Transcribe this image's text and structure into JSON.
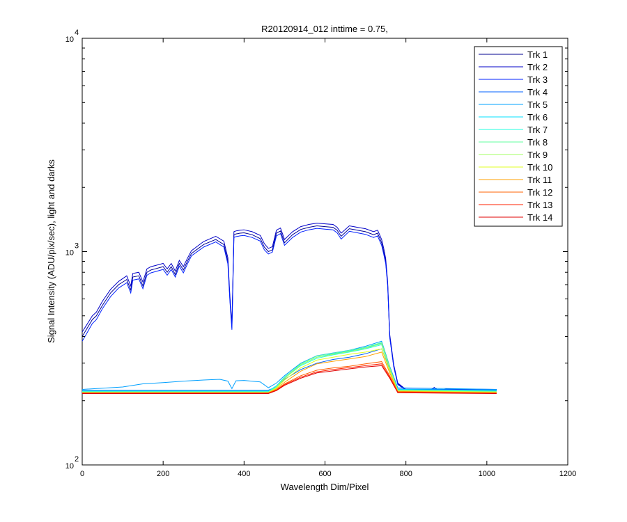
{
  "chart_data": {
    "type": "line",
    "title": "R20120914_012 inttime = 0.75,",
    "xlabel": "Wavelength Dim/Pixel",
    "ylabel": "Signal Intensity (ADU/pix/sec), light and darks",
    "xlim": [
      0,
      1200
    ],
    "ylim": [
      100,
      10000
    ],
    "yscale": "log",
    "xticks": [
      "0",
      "200",
      "400",
      "600",
      "800",
      "1000",
      "1200"
    ],
    "yticks": [
      {
        "base": "10",
        "exp": "2",
        "value": 100
      },
      {
        "base": "10",
        "exp": "3",
        "value": 1000
      },
      {
        "base": "10",
        "exp": "4",
        "value": 10000
      }
    ],
    "grid": false,
    "legend_position": "top-right",
    "series": [
      {
        "name": "Trk 1",
        "color": "#00008f",
        "x": [
          0,
          10,
          25,
          35,
          50,
          70,
          90,
          110,
          120,
          125,
          140,
          150,
          160,
          170,
          180,
          200,
          210,
          220,
          230,
          240,
          250,
          260,
          270,
          300,
          330,
          350,
          360,
          365,
          370,
          375,
          380,
          385,
          390,
          400,
          420,
          440,
          450,
          460,
          470,
          480,
          490,
          500,
          520,
          540,
          560,
          580,
          600,
          620,
          630,
          640,
          660,
          680,
          700,
          720,
          730,
          735,
          740,
          745,
          750,
          755,
          760,
          770,
          780,
          800,
          860,
          870,
          880,
          900,
          1024
        ],
        "y": [
          400,
          430,
          480,
          500,
          560,
          640,
          700,
          740,
          660,
          760,
          770,
          690,
          800,
          820,
          830,
          850,
          800,
          850,
          780,
          880,
          820,
          900,
          980,
          1080,
          1140,
          1080,
          900,
          600,
          440,
          1200,
          1210,
          1215,
          1220,
          1225,
          1200,
          1150,
          1050,
          1000,
          1020,
          1220,
          1250,
          1100,
          1200,
          1270,
          1300,
          1320,
          1310,
          1300,
          1260,
          1180,
          1280,
          1260,
          1240,
          1200,
          1220,
          1160,
          1100,
          1000,
          900,
          700,
          400,
          290,
          240,
          225,
          222,
          230,
          222,
          226,
          225
        ]
      },
      {
        "name": "Trk 2",
        "color": "#0000c8",
        "x": [
          0,
          10,
          25,
          35,
          50,
          70,
          90,
          110,
          120,
          125,
          140,
          150,
          160,
          170,
          180,
          200,
          210,
          220,
          230,
          240,
          250,
          260,
          270,
          300,
          330,
          350,
          360,
          365,
          370,
          375,
          380,
          385,
          390,
          400,
          420,
          440,
          450,
          460,
          470,
          480,
          490,
          500,
          520,
          540,
          560,
          580,
          600,
          620,
          630,
          640,
          660,
          680,
          700,
          720,
          730,
          735,
          740,
          745,
          750,
          755,
          760,
          770,
          780,
          800,
          860,
          870,
          880,
          900,
          1024
        ],
        "y": [
          420,
          450,
          500,
          520,
          585,
          665,
          725,
          770,
          690,
          790,
          800,
          720,
          830,
          850,
          860,
          880,
          830,
          880,
          810,
          910,
          850,
          930,
          1010,
          1115,
          1180,
          1120,
          935,
          620,
          455,
          1240,
          1250,
          1255,
          1260,
          1265,
          1240,
          1190,
          1090,
          1035,
          1055,
          1260,
          1290,
          1140,
          1240,
          1310,
          1340,
          1360,
          1350,
          1340,
          1300,
          1220,
          1320,
          1300,
          1280,
          1240,
          1260,
          1200,
          1140,
          1040,
          930,
          720,
          410,
          295,
          242,
          226,
          223,
          231,
          223,
          227,
          226
        ]
      },
      {
        "name": "Trk 3",
        "color": "#0020ff",
        "x": [
          0,
          10,
          25,
          35,
          50,
          70,
          90,
          110,
          120,
          125,
          140,
          150,
          160,
          170,
          180,
          200,
          210,
          220,
          230,
          240,
          250,
          260,
          270,
          300,
          330,
          350,
          360,
          365,
          370,
          375,
          380,
          385,
          390,
          400,
          420,
          440,
          450,
          460,
          470,
          480,
          490,
          500,
          520,
          540,
          560,
          580,
          600,
          620,
          630,
          640,
          660,
          680,
          700,
          720,
          730,
          735,
          740,
          745,
          750,
          755,
          760,
          770,
          780,
          800,
          860,
          870,
          880,
          900,
          1024
        ],
        "y": [
          380,
          410,
          460,
          480,
          540,
          615,
          675,
          715,
          640,
          735,
          745,
          670,
          775,
          795,
          805,
          825,
          775,
          825,
          760,
          855,
          795,
          875,
          955,
          1050,
          1110,
          1050,
          875,
          585,
          430,
          1165,
          1175,
          1180,
          1185,
          1190,
          1165,
          1120,
          1020,
          975,
          995,
          1185,
          1215,
          1070,
          1165,
          1235,
          1265,
          1285,
          1275,
          1265,
          1225,
          1145,
          1245,
          1225,
          1205,
          1165,
          1185,
          1125,
          1070,
          975,
          880,
          690,
          395,
          288,
          238,
          224,
          221,
          229,
          221,
          225,
          224
        ]
      },
      {
        "name": "Trk 4",
        "color": "#0060ff",
        "x": [
          0,
          460,
          480,
          500,
          540,
          580,
          620,
          660,
          700,
          740,
          760,
          780,
          1024
        ],
        "y": [
          224,
          224,
          232,
          252,
          280,
          300,
          312,
          320,
          332,
          350,
          280,
          227,
          225
        ]
      },
      {
        "name": "Trk 5",
        "color": "#00a0ff",
        "x": [
          0,
          100,
          150,
          200,
          250,
          300,
          340,
          360,
          370,
          380,
          400,
          440,
          460,
          480,
          500,
          540,
          580,
          620,
          660,
          700,
          740,
          760,
          780,
          1024
        ],
        "y": [
          226,
          232,
          240,
          243,
          247,
          250,
          252,
          247,
          228,
          248,
          249,
          245,
          230,
          242,
          262,
          300,
          325,
          335,
          345,
          360,
          380,
          290,
          230,
          226
        ]
      },
      {
        "name": "Trk 6",
        "color": "#00e0ff",
        "x": [
          0,
          460,
          480,
          500,
          540,
          580,
          620,
          660,
          700,
          740,
          760,
          780,
          1024
        ],
        "y": [
          222,
          222,
          235,
          258,
          295,
          320,
          332,
          342,
          355,
          372,
          285,
          226,
          223
        ]
      },
      {
        "name": "Trk 7",
        "color": "#20ffdf",
        "x": [
          0,
          460,
          480,
          500,
          540,
          580,
          620,
          660,
          700,
          740,
          760,
          780,
          1024
        ],
        "y": [
          221,
          221,
          233,
          255,
          292,
          316,
          328,
          338,
          350,
          366,
          282,
          225,
          222
        ]
      },
      {
        "name": "Trk 8",
        "color": "#60ff9f",
        "x": [
          0,
          460,
          480,
          500,
          540,
          580,
          620,
          660,
          700,
          740,
          760,
          780,
          1024
        ],
        "y": [
          220,
          220,
          232,
          257,
          298,
          324,
          334,
          344,
          356,
          375,
          287,
          224,
          221
        ]
      },
      {
        "name": "Trk 9",
        "color": "#a0ff60",
        "x": [
          0,
          460,
          480,
          500,
          540,
          580,
          620,
          660,
          700,
          740,
          760,
          780,
          1024
        ],
        "y": [
          219,
          219,
          231,
          254,
          295,
          320,
          330,
          340,
          352,
          370,
          284,
          223,
          220
        ]
      },
      {
        "name": "Trk 10",
        "color": "#e0ff20",
        "x": [
          0,
          460,
          480,
          500,
          540,
          580,
          620,
          660,
          700,
          740,
          760,
          780,
          1024
        ],
        "y": [
          218,
          218,
          229,
          250,
          285,
          310,
          320,
          330,
          338,
          350,
          276,
          222,
          219
        ]
      },
      {
        "name": "Trk 11",
        "color": "#ffa000",
        "x": [
          0,
          460,
          480,
          500,
          540,
          580,
          620,
          660,
          700,
          740,
          760,
          780,
          1024
        ],
        "y": [
          218,
          218,
          227,
          244,
          275,
          298,
          306,
          314,
          322,
          338,
          270,
          221,
          218
        ]
      },
      {
        "name": "Trk 12",
        "color": "#ff6000",
        "x": [
          0,
          460,
          480,
          500,
          540,
          580,
          620,
          660,
          700,
          740,
          760,
          780,
          1024
        ],
        "y": [
          217,
          217,
          225,
          240,
          262,
          278,
          285,
          290,
          298,
          305,
          262,
          220,
          217
        ]
      },
      {
        "name": "Trk 13",
        "color": "#ff2000",
        "x": [
          0,
          460,
          480,
          500,
          540,
          580,
          620,
          660,
          700,
          740,
          760,
          780,
          1024
        ],
        "y": [
          217,
          217,
          224,
          238,
          258,
          273,
          280,
          286,
          292,
          298,
          258,
          219,
          217
        ]
      },
      {
        "name": "Trk 14",
        "color": "#e00000",
        "x": [
          0,
          460,
          480,
          500,
          540,
          580,
          620,
          660,
          700,
          740,
          760,
          780,
          1024
        ],
        "y": [
          216,
          216,
          223,
          236,
          255,
          270,
          276,
          282,
          288,
          292,
          255,
          218,
          216
        ]
      }
    ]
  }
}
